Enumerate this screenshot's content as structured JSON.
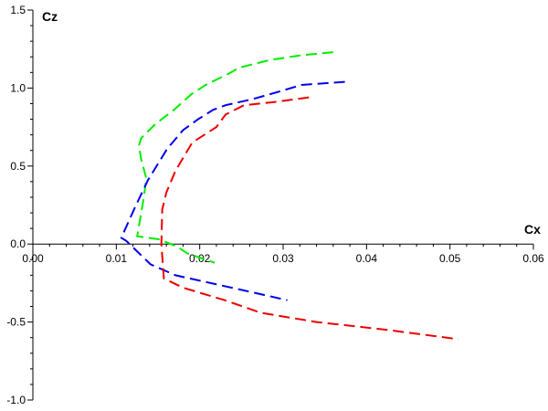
{
  "chart_data": {
    "type": "line",
    "title": "",
    "xlabel": "Cx",
    "ylabel": "Cz",
    "xlim": [
      0,
      0.06
    ],
    "ylim": [
      -1.0,
      1.5
    ],
    "xticks": [
      "0.00",
      "0.01",
      "0.02",
      "0.03",
      "0.04",
      "0.05",
      "0.06"
    ],
    "yticks": [
      "-1.0",
      "-0.5",
      "0.0",
      "0.5",
      "1.0",
      "1.5"
    ],
    "grid": false,
    "line_style": "dashed",
    "series": [
      {
        "color": "#00ee00",
        "x": [
          0.036,
          0.0322,
          0.0284,
          0.0247,
          0.0234,
          0.0207,
          0.019,
          0.0169,
          0.0147,
          0.013,
          0.0127,
          0.013,
          0.0136,
          0.0133,
          0.0125,
          0.0152,
          0.0174,
          0.0185,
          0.0218
        ],
        "y": [
          1.23,
          1.21,
          1.18,
          1.13,
          1.09,
          1.02,
          0.96,
          0.86,
          0.77,
          0.68,
          0.63,
          0.54,
          0.42,
          0.3,
          0.05,
          0.03,
          -0.02,
          -0.06,
          -0.12
        ]
      },
      {
        "color": "#0000ee",
        "x": [
          0.0374,
          0.0322,
          0.0297,
          0.0264,
          0.0231,
          0.0216,
          0.0198,
          0.018,
          0.0161,
          0.0138,
          0.0122,
          0.0106,
          0.0112,
          0.0141,
          0.0171,
          0.0213,
          0.0255,
          0.0305
        ],
        "y": [
          1.04,
          1.02,
          0.98,
          0.93,
          0.89,
          0.86,
          0.8,
          0.73,
          0.61,
          0.41,
          0.23,
          0.04,
          0.02,
          -0.13,
          -0.2,
          -0.25,
          -0.3,
          -0.36
        ]
      },
      {
        "color": "#ee0000",
        "x": [
          0.0331,
          0.0289,
          0.0253,
          0.0231,
          0.022,
          0.0191,
          0.0171,
          0.016,
          0.0155,
          0.0154,
          0.0157,
          0.018,
          0.023,
          0.0273,
          0.034,
          0.0424,
          0.051
        ],
        "y": [
          0.94,
          0.91,
          0.89,
          0.83,
          0.75,
          0.65,
          0.47,
          0.33,
          0.22,
          0.0,
          -0.22,
          -0.28,
          -0.36,
          -0.44,
          -0.5,
          -0.55,
          -0.61
        ]
      }
    ]
  }
}
